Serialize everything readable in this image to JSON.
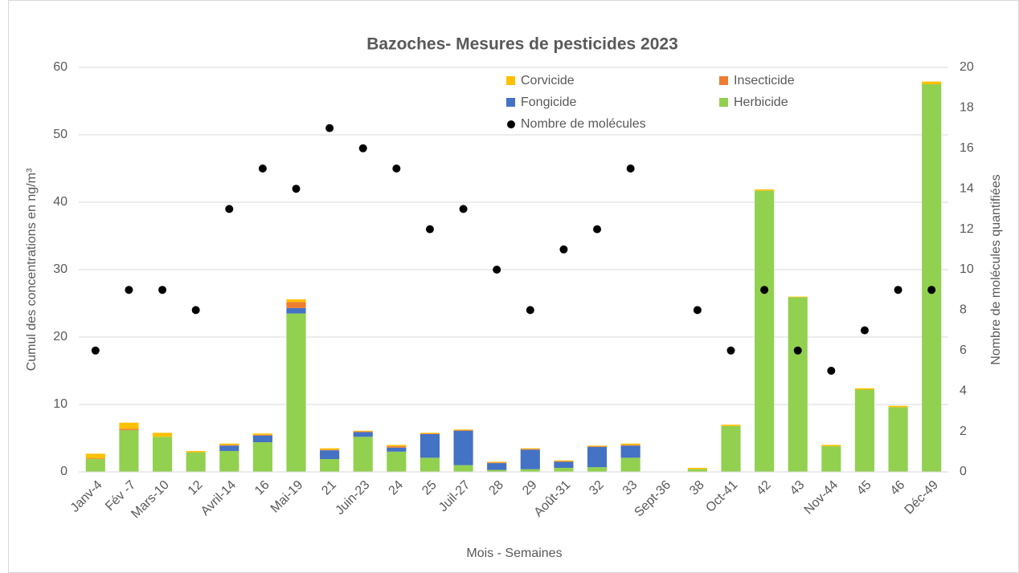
{
  "chart_data": {
    "type": "bar",
    "stacked": true,
    "title": "Bazoches- Mesures de pesticides 2023",
    "x_label": "Mois - Semaines",
    "y_label": "Cumul des concentrations en ng/m³",
    "y2_label": "Nombre de molécules quantifiées",
    "categories": [
      "Janv-4",
      "Fév -7",
      "Mars-10",
      "12",
      "Avril-14",
      "16",
      "Mai-19",
      "21",
      "Juin-23",
      "24",
      "25",
      "Juil-27",
      "28",
      "29",
      "Août-31",
      "32",
      "33",
      "Sept-36",
      "38",
      "Oct-41",
      "42",
      "43",
      "Nov-44",
      "45",
      "46",
      "Déc-49"
    ],
    "series": [
      {
        "name": "Corvicide",
        "color": "#ffc000",
        "values": [
          0.7,
          0.9,
          0.6,
          0.2,
          0.2,
          0.2,
          0.4,
          0.2,
          0.1,
          0.2,
          0.1,
          0.1,
          0.1,
          0.1,
          0.1,
          0.1,
          0.2,
          0,
          0.2,
          0.2,
          0.2,
          0.1,
          0.2,
          0.2,
          0.2,
          0.4
        ]
      },
      {
        "name": "Insecticide",
        "color": "#ed7d31",
        "values": [
          0.1,
          0.2,
          0,
          0,
          0.1,
          0.1,
          0.9,
          0.1,
          0.1,
          0.2,
          0.1,
          0.1,
          0.1,
          0.1,
          0.1,
          0.1,
          0.1,
          0,
          0,
          0,
          0,
          0,
          0,
          0,
          0,
          0
        ]
      },
      {
        "name": "Fongicide",
        "color": "#4472c4",
        "values": [
          0,
          0,
          0,
          0,
          0.8,
          1.0,
          0.8,
          1.3,
          0.7,
          0.6,
          3.5,
          5.1,
          1.0,
          2.9,
          0.9,
          3.0,
          1.8,
          0,
          0,
          0,
          0,
          0,
          0,
          0,
          0,
          0
        ]
      },
      {
        "name": "Herbicide",
        "color": "#92d050",
        "values": [
          1.9,
          6.2,
          5.2,
          2.9,
          3.1,
          4.4,
          23.5,
          1.9,
          5.2,
          3.0,
          2.1,
          1.0,
          0.3,
          0.4,
          0.6,
          0.7,
          2.1,
          0,
          0.4,
          6.8,
          41.7,
          25.9,
          3.8,
          12.2,
          9.6,
          57.5
        ]
      },
      {
        "name": "Nombre de molécules",
        "type": "scatter",
        "axis": "y2",
        "color": "#000000",
        "values": [
          6,
          9,
          9,
          8,
          13,
          15,
          14,
          17,
          16,
          15,
          12,
          13,
          10,
          8,
          11,
          12,
          15,
          null,
          8,
          6,
          9,
          6,
          5,
          7,
          9,
          9
        ]
      }
    ],
    "ylim": [
      0,
      60
    ],
    "yticks": [
      0,
      10,
      20,
      30,
      40,
      50,
      60
    ],
    "y2lim": [
      0,
      20
    ],
    "y2ticks": [
      0,
      2,
      4,
      6,
      8,
      10,
      12,
      14,
      16,
      18,
      20
    ],
    "grid": true,
    "legend": "top-right"
  }
}
